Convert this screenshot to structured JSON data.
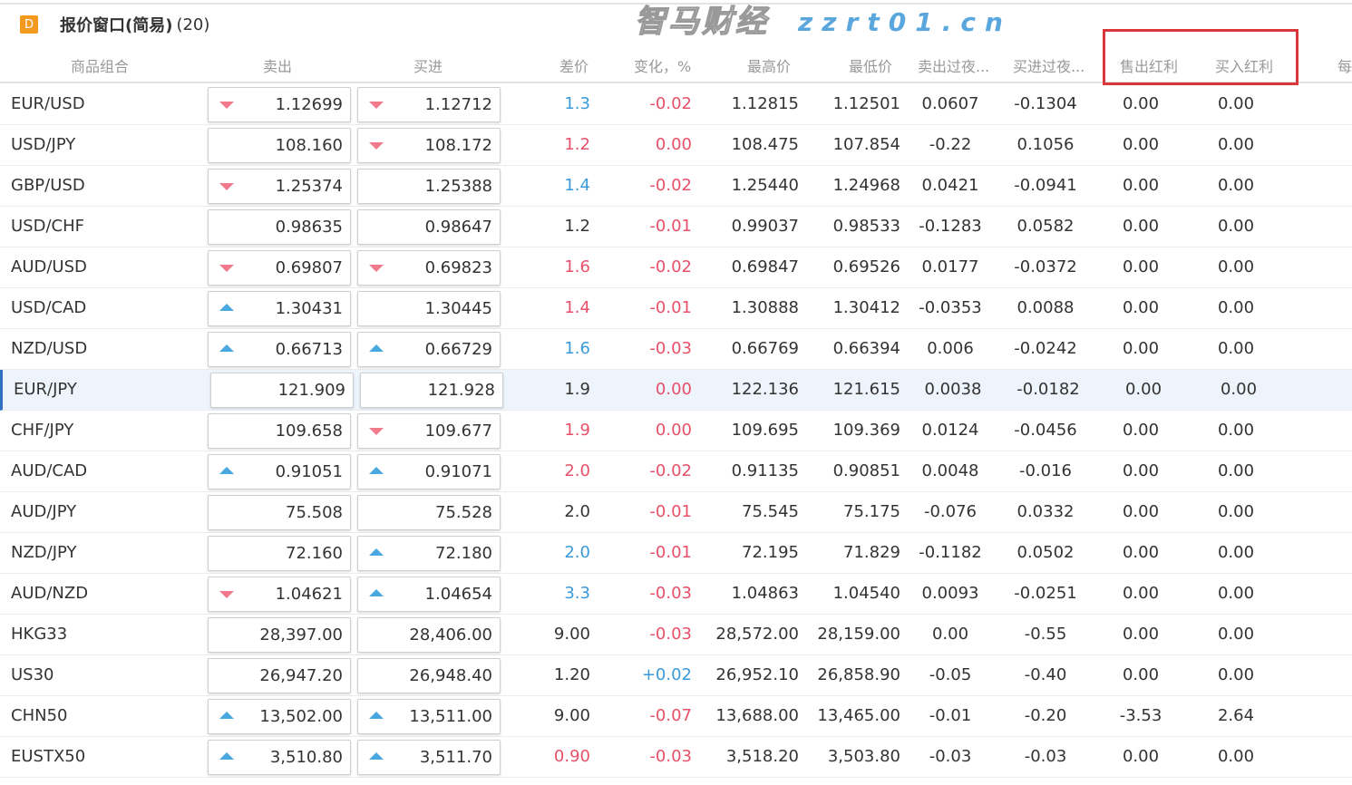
{
  "window": {
    "badge": "D",
    "title": "报价窗口(简易)",
    "count": "(20)"
  },
  "columns": [
    "商品组合",
    "卖出",
    "买进",
    "差价",
    "变化，%",
    "最高价",
    "最低价",
    "卖出过夜...",
    "买进过夜...",
    "售出红利",
    "买入红利",
    "每"
  ],
  "colors": {
    "blue": "#3a9ad9",
    "red": "#e8506a",
    "dark": "#333333",
    "arrow_down": "#f07a8c",
    "arrow_up": "#4aa8e0",
    "highlight_box": "#d9363e"
  },
  "selected_row": "EUR/JPY",
  "rows": [
    {
      "name": "EUR/USD",
      "sell": "1.12699",
      "sell_arrow": "down",
      "buy": "1.12712",
      "buy_arrow": "down",
      "spread": "1.3",
      "spread_color": "blue",
      "change": "-0.02",
      "change_color": "red",
      "high": "1.12815",
      "low": "1.12501",
      "sell_overnight": "0.0607",
      "buy_overnight": "-0.1304",
      "sell_dividend": "0.00",
      "buy_dividend": "0.00"
    },
    {
      "name": "USD/JPY",
      "sell": "108.160",
      "sell_arrow": "",
      "buy": "108.172",
      "buy_arrow": "down",
      "spread": "1.2",
      "spread_color": "red",
      "change": "0.00",
      "change_color": "red",
      "high": "108.475",
      "low": "107.854",
      "sell_overnight": "-0.22",
      "buy_overnight": "0.1056",
      "sell_dividend": "0.00",
      "buy_dividend": "0.00"
    },
    {
      "name": "GBP/USD",
      "sell": "1.25374",
      "sell_arrow": "down",
      "buy": "1.25388",
      "buy_arrow": "",
      "spread": "1.4",
      "spread_color": "blue",
      "change": "-0.02",
      "change_color": "red",
      "high": "1.25440",
      "low": "1.24968",
      "sell_overnight": "0.0421",
      "buy_overnight": "-0.0941",
      "sell_dividend": "0.00",
      "buy_dividend": "0.00"
    },
    {
      "name": "USD/CHF",
      "sell": "0.98635",
      "sell_arrow": "",
      "buy": "0.98647",
      "buy_arrow": "",
      "spread": "1.2",
      "spread_color": "dark",
      "change": "-0.01",
      "change_color": "red",
      "high": "0.99037",
      "low": "0.98533",
      "sell_overnight": "-0.1283",
      "buy_overnight": "0.0582",
      "sell_dividend": "0.00",
      "buy_dividend": "0.00"
    },
    {
      "name": "AUD/USD",
      "sell": "0.69807",
      "sell_arrow": "down",
      "buy": "0.69823",
      "buy_arrow": "down",
      "spread": "1.6",
      "spread_color": "red",
      "change": "-0.02",
      "change_color": "red",
      "high": "0.69847",
      "low": "0.69526",
      "sell_overnight": "0.0177",
      "buy_overnight": "-0.0372",
      "sell_dividend": "0.00",
      "buy_dividend": "0.00"
    },
    {
      "name": "USD/CAD",
      "sell": "1.30431",
      "sell_arrow": "up",
      "buy": "1.30445",
      "buy_arrow": "",
      "spread": "1.4",
      "spread_color": "red",
      "change": "-0.01",
      "change_color": "red",
      "high": "1.30888",
      "low": "1.30412",
      "sell_overnight": "-0.0353",
      "buy_overnight": "0.0088",
      "sell_dividend": "0.00",
      "buy_dividend": "0.00"
    },
    {
      "name": "NZD/USD",
      "sell": "0.66713",
      "sell_arrow": "up",
      "buy": "0.66729",
      "buy_arrow": "up",
      "spread": "1.6",
      "spread_color": "blue",
      "change": "-0.03",
      "change_color": "red",
      "high": "0.66769",
      "low": "0.66394",
      "sell_overnight": "0.006",
      "buy_overnight": "-0.0242",
      "sell_dividend": "0.00",
      "buy_dividend": "0.00"
    },
    {
      "name": "EUR/JPY",
      "sell": "121.909",
      "sell_arrow": "",
      "buy": "121.928",
      "buy_arrow": "",
      "spread": "1.9",
      "spread_color": "dark",
      "change": "0.00",
      "change_color": "red",
      "high": "122.136",
      "low": "121.615",
      "sell_overnight": "0.0038",
      "buy_overnight": "-0.0182",
      "sell_dividend": "0.00",
      "buy_dividend": "0.00"
    },
    {
      "name": "CHF/JPY",
      "sell": "109.658",
      "sell_arrow": "",
      "buy": "109.677",
      "buy_arrow": "down",
      "spread": "1.9",
      "spread_color": "red",
      "change": "0.00",
      "change_color": "red",
      "high": "109.695",
      "low": "109.369",
      "sell_overnight": "0.0124",
      "buy_overnight": "-0.0456",
      "sell_dividend": "0.00",
      "buy_dividend": "0.00"
    },
    {
      "name": "AUD/CAD",
      "sell": "0.91051",
      "sell_arrow": "up",
      "buy": "0.91071",
      "buy_arrow": "up",
      "spread": "2.0",
      "spread_color": "red",
      "change": "-0.02",
      "change_color": "red",
      "high": "0.91135",
      "low": "0.90851",
      "sell_overnight": "0.0048",
      "buy_overnight": "-0.016",
      "sell_dividend": "0.00",
      "buy_dividend": "0.00"
    },
    {
      "name": "AUD/JPY",
      "sell": "75.508",
      "sell_arrow": "",
      "buy": "75.528",
      "buy_arrow": "",
      "spread": "2.0",
      "spread_color": "dark",
      "change": "-0.01",
      "change_color": "red",
      "high": "75.545",
      "low": "75.175",
      "sell_overnight": "-0.076",
      "buy_overnight": "0.0332",
      "sell_dividend": "0.00",
      "buy_dividend": "0.00"
    },
    {
      "name": "NZD/JPY",
      "sell": "72.160",
      "sell_arrow": "",
      "buy": "72.180",
      "buy_arrow": "up",
      "spread": "2.0",
      "spread_color": "blue",
      "change": "-0.01",
      "change_color": "red",
      "high": "72.195",
      "low": "71.829",
      "sell_overnight": "-0.1182",
      "buy_overnight": "0.0502",
      "sell_dividend": "0.00",
      "buy_dividend": "0.00"
    },
    {
      "name": "AUD/NZD",
      "sell": "1.04621",
      "sell_arrow": "down",
      "buy": "1.04654",
      "buy_arrow": "up",
      "spread": "3.3",
      "spread_color": "blue",
      "change": "-0.03",
      "change_color": "red",
      "high": "1.04863",
      "low": "1.04540",
      "sell_overnight": "0.0093",
      "buy_overnight": "-0.0251",
      "sell_dividend": "0.00",
      "buy_dividend": "0.00"
    },
    {
      "name": "HKG33",
      "sell": "28,397.00",
      "sell_arrow": "",
      "buy": "28,406.00",
      "buy_arrow": "",
      "spread": "9.00",
      "spread_color": "dark",
      "change": "-0.03",
      "change_color": "red",
      "high": "28,572.00",
      "low": "28,159.00",
      "sell_overnight": "0.00",
      "buy_overnight": "-0.55",
      "sell_dividend": "0.00",
      "buy_dividend": "0.00"
    },
    {
      "name": "US30",
      "sell": "26,947.20",
      "sell_arrow": "",
      "buy": "26,948.40",
      "buy_arrow": "",
      "spread": "1.20",
      "spread_color": "dark",
      "change": "+0.02",
      "change_color": "blue",
      "high": "26,952.10",
      "low": "26,858.90",
      "sell_overnight": "-0.05",
      "buy_overnight": "-0.40",
      "sell_dividend": "0.00",
      "buy_dividend": "0.00"
    },
    {
      "name": "CHN50",
      "sell": "13,502.00",
      "sell_arrow": "up",
      "buy": "13,511.00",
      "buy_arrow": "up",
      "spread": "9.00",
      "spread_color": "dark",
      "change": "-0.07",
      "change_color": "red",
      "high": "13,688.00",
      "low": "13,465.00",
      "sell_overnight": "-0.01",
      "buy_overnight": "-0.20",
      "sell_dividend": "-3.53",
      "buy_dividend": "2.64"
    },
    {
      "name": "EUSTX50",
      "sell": "3,510.80",
      "sell_arrow": "up",
      "buy": "3,511.70",
      "buy_arrow": "up",
      "spread": "0.90",
      "spread_color": "red",
      "change": "-0.03",
      "change_color": "red",
      "high": "3,518.20",
      "low": "3,503.80",
      "sell_overnight": "-0.03",
      "buy_overnight": "-0.03",
      "sell_dividend": "0.00",
      "buy_dividend": "0.00"
    }
  ],
  "watermark": {
    "text": "智马财经",
    "url": "zzrt01.cn"
  }
}
